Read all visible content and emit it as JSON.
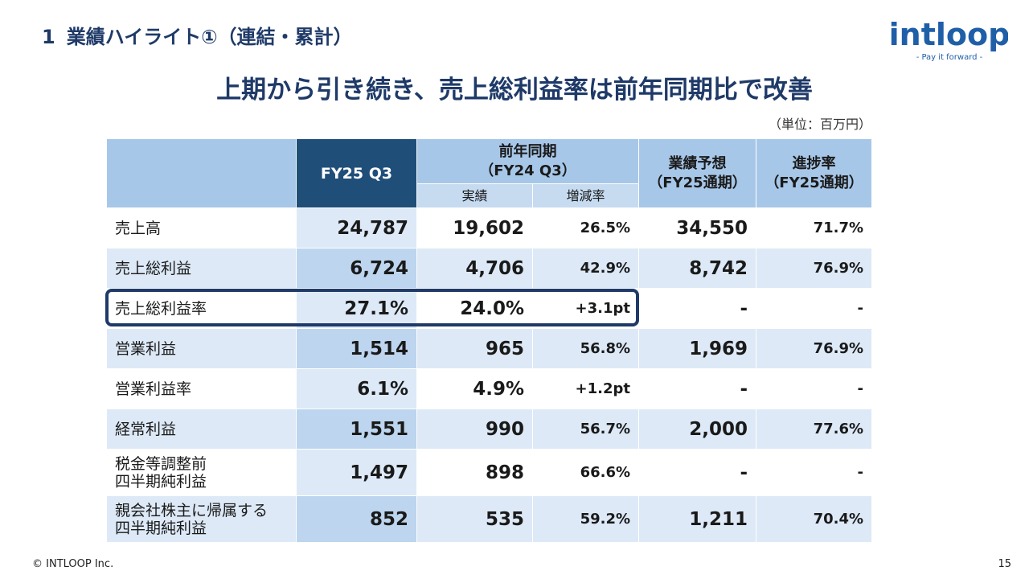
{
  "section": {
    "number": "1",
    "title": "業績ハイライト①（連結・累計）"
  },
  "logo": {
    "wordmark": "intloop",
    "tagline": "- Pay it forward -",
    "color": "#1f5fa8"
  },
  "headline": "上期から引き続き、売上総利益率は前年同期比で改善",
  "unit": "（単位：百万円）",
  "table": {
    "headers": {
      "current": "FY25 Q3",
      "prior_group_line1": "前年同期",
      "prior_group_line2": "（FY24 Q3）",
      "prior_actual": "実績",
      "prior_change": "増減率",
      "forecast_line1": "業績予想",
      "forecast_line2": "（FY25通期）",
      "progress_line1": "進捗率",
      "progress_line2": "（FY25通期）"
    },
    "rows": [
      {
        "label1": "売上高",
        "label2": "",
        "current": "24,787",
        "prior": "19,602",
        "change": "26.5%",
        "forecast": "34,550",
        "progress": "71.7%"
      },
      {
        "label1": "売上総利益",
        "label2": "",
        "current": "6,724",
        "prior": "4,706",
        "change": "42.9%",
        "forecast": "8,742",
        "progress": "76.9%"
      },
      {
        "label1": "売上総利益率",
        "label2": "",
        "current": "27.1%",
        "prior": "24.0%",
        "change": "+3.1pt",
        "forecast": "-",
        "progress": "-"
      },
      {
        "label1": "営業利益",
        "label2": "",
        "current": "1,514",
        "prior": "965",
        "change": "56.8%",
        "forecast": "1,969",
        "progress": "76.9%"
      },
      {
        "label1": "営業利益率",
        "label2": "",
        "current": "6.1%",
        "prior": "4.9%",
        "change": "+1.2pt",
        "forecast": "-",
        "progress": "-"
      },
      {
        "label1": "経常利益",
        "label2": "",
        "current": "1,551",
        "prior": "990",
        "change": "56.7%",
        "forecast": "2,000",
        "progress": "77.6%"
      },
      {
        "label1": "税金等調整前",
        "label2": "四半期純利益",
        "current": "1,497",
        "prior": "898",
        "change": "66.6%",
        "forecast": "-",
        "progress": "-"
      },
      {
        "label1": "親会社株主に帰属する",
        "label2": "四半期純利益",
        "current": "852",
        "prior": "535",
        "change": "59.2%",
        "forecast": "1,211",
        "progress": "70.4%"
      }
    ]
  },
  "footer": {
    "copyright": "© INTLOOP  Inc.",
    "page": "15"
  },
  "colors": {
    "title": "#1f3a68",
    "header": "#a7c7e8",
    "header_current": "#1f4e79",
    "row_alt": "#dde9f7"
  }
}
